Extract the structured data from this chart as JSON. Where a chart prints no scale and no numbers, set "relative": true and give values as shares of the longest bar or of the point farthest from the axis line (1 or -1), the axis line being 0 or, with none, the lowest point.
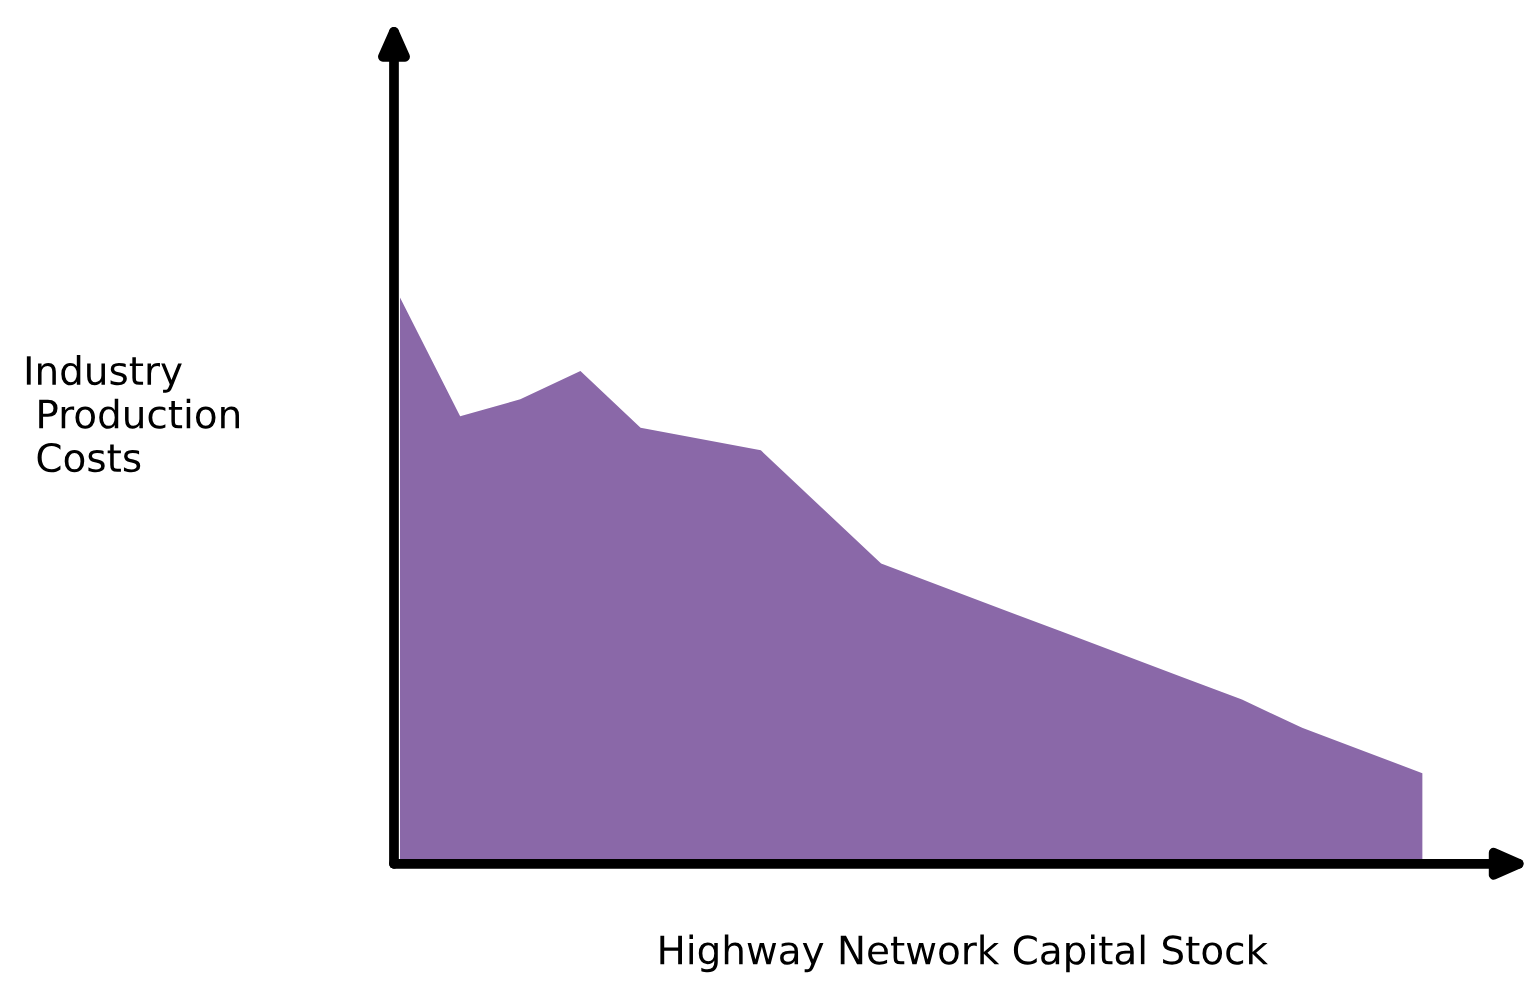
{
  "chart_data": {
    "type": "area",
    "relative": true,
    "xlabel": "Highway Network Capital Stock",
    "ylabel": "Industry\n Production\n Costs",
    "categories": [
      null,
      null,
      null,
      null,
      null,
      null,
      null,
      null,
      null,
      null,
      null,
      null,
      null,
      null,
      null,
      null,
      null,
      null
    ],
    "series": [
      {
        "color": "#8a68a8",
        "values": [
          1,
          0.79,
          0.82,
          0.87,
          0.77,
          0.75,
          0.73,
          0.63,
          0.53,
          0.49,
          0.45,
          0.41,
          0.37,
          0.33,
          0.29,
          0.24,
          0.2,
          0.16
        ]
      }
    ],
    "grid": false,
    "legend": false
  }
}
